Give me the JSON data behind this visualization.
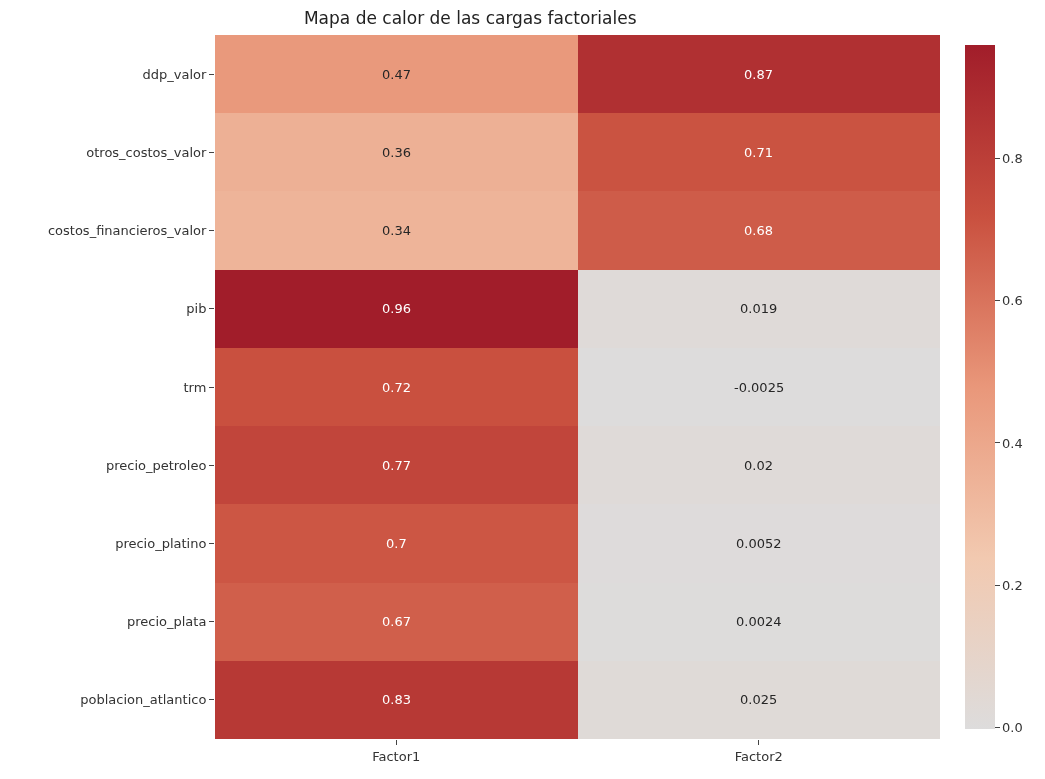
{
  "chart_data": {
    "type": "heatmap",
    "title": "Mapa de calor de las cargas factoriales",
    "categories": [
      "Factor1",
      "Factor2"
    ],
    "y_categories": [
      "ddp_valor",
      "otros_costos_valor",
      "costos_financieros_valor",
      "pib",
      "trm",
      "precio_petroleo",
      "precio_platino",
      "precio_plata",
      "poblacion_atlantico"
    ],
    "cells": [
      [
        0.47,
        0.87
      ],
      [
        0.36,
        0.71
      ],
      [
        0.34,
        0.68
      ],
      [
        0.96,
        0.019
      ],
      [
        0.72,
        -0.0025
      ],
      [
        0.77,
        0.02
      ],
      [
        0.7,
        0.0052
      ],
      [
        0.67,
        0.0024
      ],
      [
        0.83,
        0.025
      ]
    ],
    "clim": [
      -0.0025,
      0.96
    ],
    "cticks": [
      {
        "value": 0,
        "label": "0.0"
      },
      {
        "value": 0.2,
        "label": "0.2"
      },
      {
        "value": 0.4,
        "label": "0.4"
      },
      {
        "value": 0.6,
        "label": "0.6"
      },
      {
        "value": 0.8,
        "label": "0.8"
      }
    ],
    "data_labels": true
  }
}
